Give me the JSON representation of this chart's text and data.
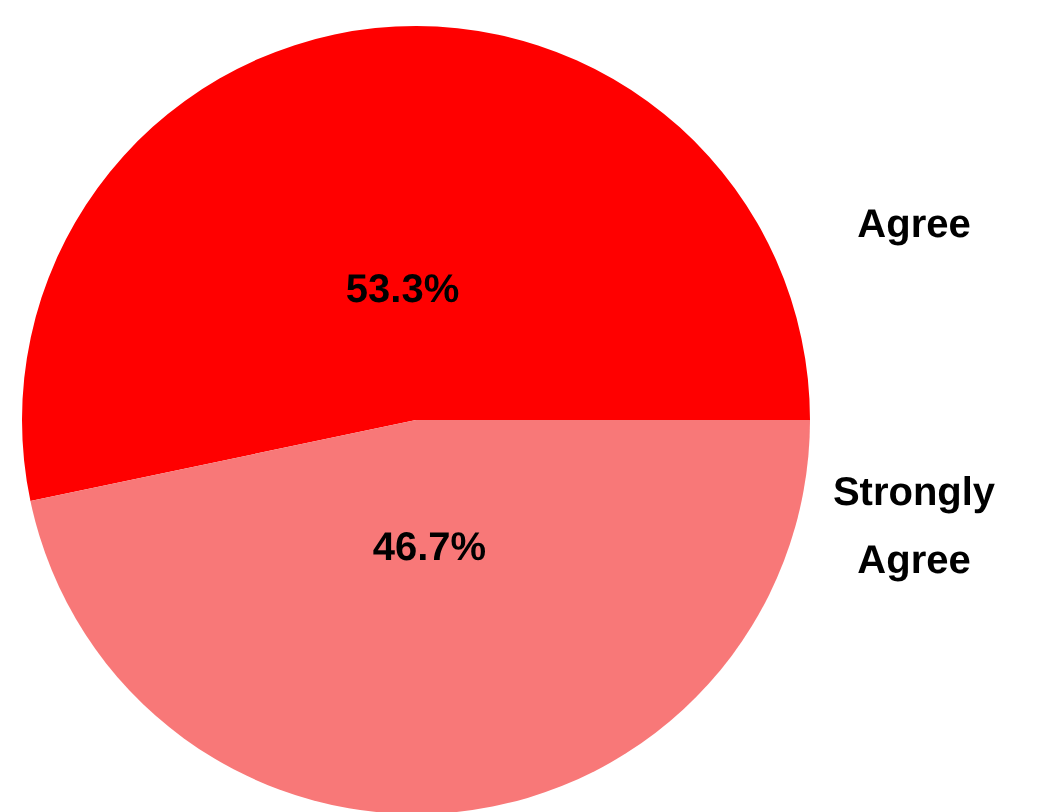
{
  "chart_data": {
    "type": "pie",
    "categories": [
      "Agree",
      "Strongly Agree"
    ],
    "values": [
      53.3,
      46.7
    ],
    "colors": [
      "#ff0000",
      "#f87878"
    ],
    "value_labels": [
      "53.3%",
      "46.7%"
    ],
    "legend": false
  }
}
